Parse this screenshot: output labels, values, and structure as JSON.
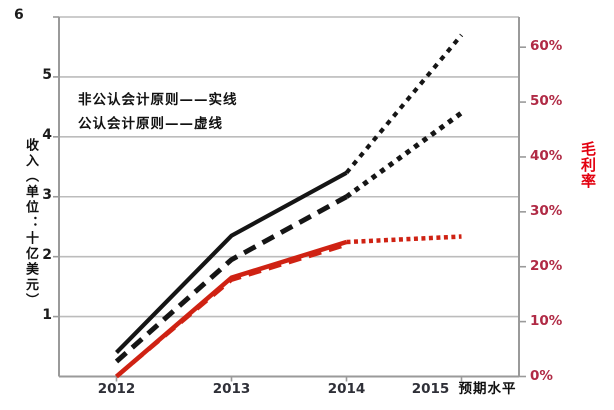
{
  "chart_data": {
    "type": "line",
    "title": "",
    "x_categories": [
      "2012",
      "2013",
      "2014",
      "2015"
    ],
    "x_annotation": "预期水平",
    "ylabel": "收入（单位：十亿美元）",
    "y2label": "毛利率",
    "ylim": [
      0,
      6
    ],
    "y2lim": [
      0,
      65.5
    ],
    "yticks": [
      "6",
      "5",
      "4",
      "3",
      "2",
      "1"
    ],
    "ytick_values": [
      6,
      5,
      4,
      3,
      2,
      1
    ],
    "y2ticks": [
      "60%",
      "50%",
      "40%",
      "30%",
      "20%",
      "10%",
      "0%"
    ],
    "y2tick_values": [
      60,
      50,
      40,
      30,
      20,
      10,
      0
    ],
    "grid": "horizontal gridlines at left-axis integers 1-6",
    "legend": [
      {
        "label": "非公认会计原则——实线"
      },
      {
        "label": "公认会计原则——虚线"
      }
    ],
    "projection_note": "2014→2015 segments drawn dotted (预期/projected)",
    "series": [
      {
        "name": "非公认会计原则收入(实线)",
        "axis": "left",
        "style": "solid",
        "color": "#151515",
        "width": 4.2,
        "values": [
          0.4,
          2.35,
          3.4,
          5.7
        ],
        "projection_last": true
      },
      {
        "name": "公认会计原则收入(虚线)",
        "axis": "left",
        "style": "dashed",
        "color": "#151515",
        "width": 5,
        "values": [
          0.25,
          1.95,
          3.0,
          4.4
        ],
        "projection_last": true
      },
      {
        "name": "非公认会计原则毛利率(实线)",
        "axis": "right",
        "style": "solid",
        "color": "#cf2213",
        "width": 4.5,
        "values": [
          0,
          18,
          24.5,
          25.5
        ],
        "projection_last": true
      },
      {
        "name": "公认会计原则毛利率(虚线)",
        "axis": "right",
        "style": "dashed",
        "color": "#cf2213",
        "width": 4,
        "values": [
          0,
          17.6,
          24.0,
          null
        ],
        "projection_last": false
      }
    ],
    "colors": {
      "grid": "#bcbcbc",
      "axis": "#9a9a9a",
      "left_tick_label": "#1b1b1b",
      "right_tick_label": "#b02a45",
      "x_tick_label": "#2f3038",
      "y2_title": "#e3000f",
      "line_black": "#151515",
      "line_red": "#cf2213"
    }
  }
}
